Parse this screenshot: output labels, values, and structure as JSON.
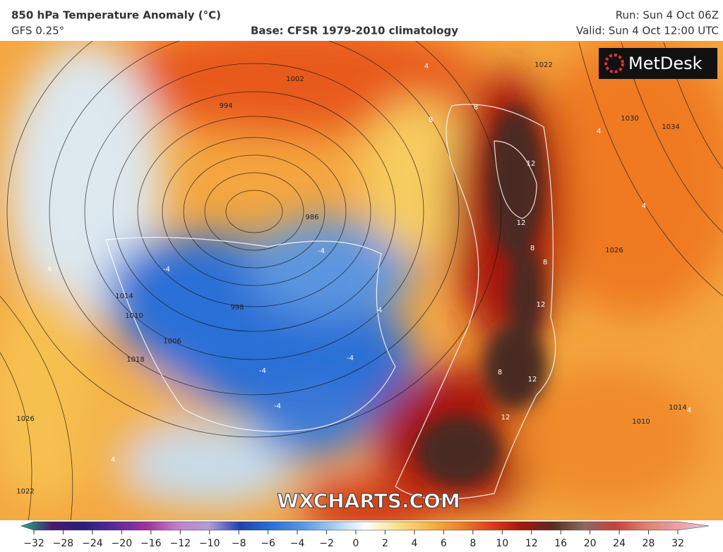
{
  "header": {
    "title": "850 hPa Temperature Anomaly (°C)",
    "model": "GFS 0.25°",
    "base": "Base: CFSR 1979-2010 climatology",
    "run": "Run: Sun 4 Oct 06Z",
    "valid": "Valid: Sun 4 Oct 12:00 UTC"
  },
  "logo": "MetDesk",
  "watermark": "WXCHARTS.COM",
  "map": {
    "labels": [
      "994",
      "986",
      "1002",
      "998",
      "1006",
      "1010",
      "1014",
      "1018",
      "1026",
      "1022",
      "1030",
      "1034",
      "1022",
      "1026",
      "1010",
      "1014",
      "4",
      "4",
      "8",
      "8",
      "12",
      "12",
      "8",
      "8",
      "12",
      "12",
      "8",
      "12",
      "4",
      "-4",
      "-4",
      "-4",
      "-4",
      "-4",
      "4",
      "4",
      "4",
      "4"
    ]
  },
  "colorbar": {
    "ticks": [
      {
        "value": -32,
        "label": "−32"
      },
      {
        "value": -28,
        "label": "−28"
      },
      {
        "value": -24,
        "label": "−24"
      },
      {
        "value": -20,
        "label": "−20"
      },
      {
        "value": -16,
        "label": "−16"
      },
      {
        "value": -12,
        "label": "−12"
      },
      {
        "value": -10,
        "label": "−10"
      },
      {
        "value": -8,
        "label": "−8"
      },
      {
        "value": -6,
        "label": "−6"
      },
      {
        "value": -4,
        "label": "−4"
      },
      {
        "value": -2,
        "label": "−2"
      },
      0,
      2,
      4,
      6,
      8,
      10,
      12,
      16,
      20,
      24,
      28,
      32
    ]
  }
}
